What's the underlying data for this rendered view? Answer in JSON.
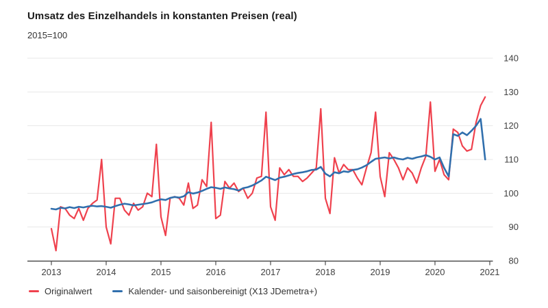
{
  "header": {
    "title": "Umsatz des Einzelhandels in konstanten Preisen (real)",
    "subtitle": "2015=100"
  },
  "legend": [
    {
      "label": "Originalwert",
      "color": "#ef414d"
    },
    {
      "label": "Kalender- und saisonbereinigt (X13 JDemetra+)",
      "color": "#306fad"
    }
  ],
  "colors": {
    "original_series": "#ef414d",
    "adjusted_series": "#306fad",
    "gridline": "#e7e7e7",
    "axis": "#4d4d4d",
    "tick_label": "#404040"
  },
  "chart_data": {
    "type": "line",
    "title": "Umsatz des Einzelhandels in konstanten Preisen (real)",
    "subtitle": "2015=100",
    "x_unit": "month",
    "x_start": "2013-01",
    "x_end": "2020-12",
    "x_tick_labels": [
      "2013",
      "2014",
      "2015",
      "2016",
      "2017",
      "2018",
      "2019",
      "2020",
      "2021"
    ],
    "y_ticks": [
      80,
      90,
      100,
      110,
      120,
      130,
      140
    ],
    "ylim": [
      80,
      140
    ],
    "grid": "horizontal",
    "legend_position": "bottom-left",
    "series": [
      {
        "name": "Originalwert",
        "color": "#ef414d",
        "values": [
          89.5,
          83.0,
          96.0,
          95.5,
          93.5,
          92.5,
          95.5,
          92.0,
          95.5,
          97.0,
          98.0,
          110.0,
          90.0,
          85.0,
          98.5,
          98.5,
          95.0,
          93.5,
          97.0,
          95.0,
          96.0,
          100.0,
          99.0,
          114.5,
          93.0,
          87.5,
          98.5,
          99.0,
          98.5,
          96.5,
          103.0,
          95.5,
          96.5,
          104.0,
          102.0,
          121.0,
          92.5,
          93.5,
          103.5,
          101.5,
          103.0,
          100.5,
          101.5,
          98.5,
          100.0,
          104.5,
          105.0,
          124.0,
          96.0,
          92.0,
          107.5,
          105.5,
          107.0,
          105.0,
          105.0,
          103.5,
          104.5,
          106.0,
          107.5,
          125.0,
          98.5,
          94.0,
          110.5,
          106.0,
          108.5,
          107.0,
          107.0,
          104.5,
          102.5,
          107.5,
          112.0,
          124.0,
          105.0,
          99.0,
          112.0,
          110.0,
          107.5,
          104.0,
          107.5,
          106.0,
          103.0,
          107.5,
          111.0,
          127.0,
          106.5,
          110.0,
          105.5,
          104.0,
          119.0,
          118.0,
          114.0,
          112.5,
          113.0,
          121.0,
          126.0,
          128.5
        ]
      },
      {
        "name": "Kalender- und saisonbereinigt (X13 JDemetra+)",
        "color": "#306fad",
        "values": [
          95.4,
          95.2,
          95.7,
          95.5,
          95.9,
          95.6,
          96.0,
          95.8,
          96.1,
          96.3,
          96.1,
          96.2,
          96.0,
          95.7,
          96.2,
          96.6,
          96.9,
          96.7,
          96.4,
          96.6,
          96.8,
          97.0,
          97.3,
          97.8,
          98.2,
          98.0,
          98.6,
          98.9,
          98.7,
          99.1,
          100.3,
          99.9,
          100.2,
          100.7,
          101.3,
          101.8,
          101.6,
          101.3,
          101.7,
          101.4,
          101.2,
          100.8,
          101.5,
          101.8,
          102.3,
          103.0,
          103.8,
          104.9,
          104.4,
          103.9,
          104.6,
          104.9,
          105.3,
          105.7,
          106.0,
          106.2,
          106.5,
          106.9,
          107.0,
          107.8,
          105.8,
          105.0,
          106.2,
          105.9,
          106.5,
          106.3,
          106.9,
          107.1,
          107.6,
          108.3,
          109.3,
          110.2,
          110.4,
          110.6,
          110.3,
          110.6,
          110.2,
          110.0,
          110.5,
          110.2,
          110.6,
          110.9,
          111.3,
          110.8,
          110.0,
          110.6,
          107.5,
          105.0,
          117.5,
          117.0,
          118.0,
          117.2,
          118.5,
          120.0,
          122.0,
          110.0
        ]
      }
    ]
  }
}
